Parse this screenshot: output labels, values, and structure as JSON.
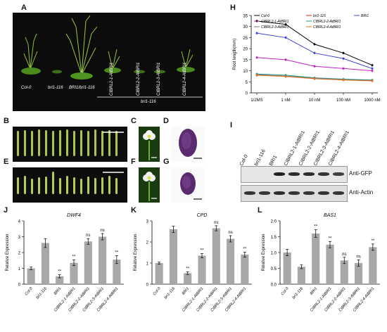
{
  "panels": {
    "A": "A",
    "B": "B",
    "C": "C",
    "D": "D",
    "E": "E",
    "F": "F",
    "G": "G",
    "H": "H",
    "I": "I",
    "J": "J",
    "K": "K",
    "L": "L"
  },
  "panel_a": {
    "labels": [
      "Col-0",
      "bri1-116",
      "BRI1/bri1-116",
      "CIBRL2-1-AtBRI1",
      "CIBRL2-2-AtBRI1",
      "CIBRL2-3-AtBRI1",
      "CIBRL2-4-AtBRI1"
    ],
    "group_label": "bri1-116"
  },
  "panel_i": {
    "lanes": [
      "Col-0",
      "bri1-116",
      "BRI1",
      "CIBRL2-1-AtBRI1",
      "CIBRL2-2-AtBRI1",
      "CIBRL2-3-AtBRI1",
      "CIBRL2-4-AtBRI1"
    ],
    "band_labels": [
      "Anti-GFP",
      "Anti-Actin"
    ],
    "gfp_intensity": [
      0,
      0,
      1.0,
      0.95,
      0.95,
      0.9,
      0.85
    ],
    "actin_intensity": [
      0.9,
      0.9,
      0.95,
      0.9,
      0.9,
      0.9,
      0.9
    ]
  },
  "chart_data": [
    {
      "type": "line",
      "panel": "H",
      "ylabel": "Root length(mm)",
      "categories": [
        "1/2MS",
        "1 nM",
        "10 nM",
        "100 nM",
        "1000 nM"
      ],
      "ylim": [
        0,
        35
      ],
      "yticks": [
        0,
        5,
        10,
        15,
        20,
        25,
        30,
        35
      ],
      "legend_placement": "top",
      "series": [
        {
          "name": "Col-0",
          "color": "#000000",
          "values": [
            32.5,
            31,
            22,
            18,
            12.5
          ]
        },
        {
          "name": "bri1-116",
          "color": "#e0231c",
          "values": [
            8,
            7.5,
            6.5,
            6,
            5.5
          ]
        },
        {
          "name": "BRI1",
          "color": "#3a44d6",
          "values": [
            27,
            25,
            18,
            15.5,
            11
          ]
        },
        {
          "name": "CIBRL2-1-AtBRI1",
          "color": "#c020c0",
          "values": [
            16,
            15,
            12,
            11,
            10
          ]
        },
        {
          "name": "CIBRL2-2-AtBRI1",
          "color": "#1a9a8e",
          "values": [
            8.5,
            8,
            6.8,
            6.2,
            5.8
          ]
        },
        {
          "name": "CIBRL2-3-AtBRI1",
          "color": "#7a7a7a",
          "values": [
            8.2,
            7.6,
            6.6,
            6,
            5.6
          ]
        },
        {
          "name": "CIBRL2-4-AtBRI1",
          "color": "#e07020",
          "values": [
            8,
            7.4,
            6.4,
            5.8,
            5.4
          ]
        }
      ]
    },
    {
      "type": "bar",
      "panel": "J",
      "title": "DWF4",
      "ylabel": "Relative Expression",
      "categories": [
        "Col-0",
        "bri1-116",
        "BRI1",
        "CIBRL2-1-AtBRI1",
        "CIBRL2-2-AtBRI1",
        "CIBRL2-3-AtBRI1",
        "CIBRL2-4-AtBRI1"
      ],
      "values": [
        1.0,
        2.6,
        0.5,
        1.35,
        2.7,
        3.0,
        1.55
      ],
      "errors": [
        0.08,
        0.28,
        0.1,
        0.18,
        0.18,
        0.2,
        0.25
      ],
      "significance": [
        "",
        "",
        "**",
        "**",
        "ns",
        "ns",
        "**"
      ],
      "ylim": [
        0,
        4
      ],
      "yticks": [
        0,
        1,
        2,
        3,
        4
      ]
    },
    {
      "type": "bar",
      "panel": "K",
      "title": "CPD",
      "ylabel": "Relative Expression",
      "categories": [
        "Col-0",
        "bri1-116",
        "BRI1",
        "CIBRL2-1-AtBRI1",
        "CIBRL2-2-AtBRI1",
        "CIBRL2-3-AtBRI1",
        "CIBRL2-4-AtBRI1"
      ],
      "values": [
        1.0,
        2.6,
        0.52,
        1.35,
        2.65,
        2.15,
        1.4
      ],
      "errors": [
        0.05,
        0.15,
        0.06,
        0.1,
        0.12,
        0.15,
        0.12
      ],
      "significance": [
        "",
        "",
        "**",
        "**",
        "ns",
        "ns",
        "**"
      ],
      "ylim": [
        0,
        3
      ],
      "yticks": [
        0,
        1,
        2,
        3
      ]
    },
    {
      "type": "bar",
      "panel": "L",
      "title": "BAS1",
      "ylabel": "Relative Expression",
      "categories": [
        "Col-0",
        "bri1-116",
        "BRI1",
        "CIBRL2-1-AtBRI1",
        "CIBRL2-2-AtBRI1",
        "CIBRL2-3-AtBRI1",
        "CIBRL2-4-AtBRI1"
      ],
      "values": [
        1.0,
        0.55,
        1.6,
        1.25,
        0.75,
        0.67,
        1.17
      ],
      "errors": [
        0.1,
        0.06,
        0.12,
        0.1,
        0.1,
        0.1,
        0.1
      ],
      "significance": [
        "",
        "",
        "**",
        "**",
        "ns",
        "ns",
        "**"
      ],
      "ylim": [
        0,
        2.0
      ],
      "yticks": [
        0.0,
        0.5,
        1.0,
        1.5,
        2.0
      ]
    }
  ]
}
